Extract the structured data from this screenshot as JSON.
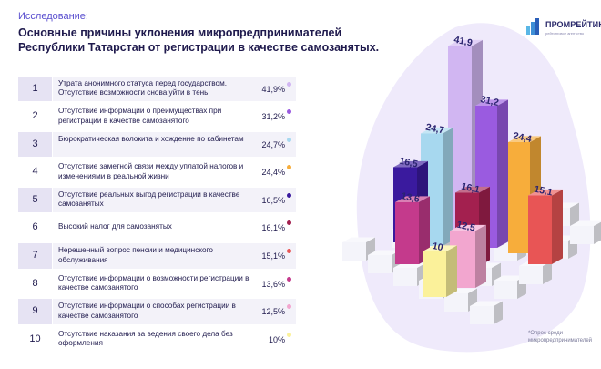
{
  "header": {
    "kicker": "Исследование:",
    "title": "Основные причины уклонения микропредпринимателей Республики Татарстан от регистрации в качестве самозанятых."
  },
  "logo": {
    "name": "ПРОМРЕЙТИНГ",
    "subtitle": "рейтинговое агентство"
  },
  "footnote": "*Опрос среди микропредпринимателей",
  "rows": [
    {
      "num": "1",
      "label": "Утрата анонимного статуса перед государством. Отсутствие возможности снова уйти в тень",
      "pct": "41,9%",
      "color": "#d1b6f2"
    },
    {
      "num": "2",
      "label": "Отсутствие информации о преимуществах при регистрации в качестве самозанятого",
      "pct": "31,2%",
      "color": "#9a5be0"
    },
    {
      "num": "3",
      "label": "Бюрократическая волокита и хождение по кабинетам",
      "pct": "24,7%",
      "color": "#a7d8ef"
    },
    {
      "num": "4",
      "label": "Отсутствие заметной связи между уплатой налогов и изменениями в реальной жизни",
      "pct": "24,4%",
      "color": "#f7ad3b"
    },
    {
      "num": "5",
      "label": "Отсутствие реальных выгод регистрации в качестве самозанятых",
      "pct": "16,5%",
      "color": "#3a1a9e"
    },
    {
      "num": "6",
      "label": "Высокий налог для самозанятых",
      "pct": "16,1%",
      "color": "#a3204f"
    },
    {
      "num": "7",
      "label": "Нерешенный вопрос пенсии и медицинского обслуживания",
      "pct": "15,1%",
      "color": "#e85555"
    },
    {
      "num": "8",
      "label": "Отсутствие информации о возможности регистрации в качестве самозанятого",
      "pct": "13,6%",
      "color": "#c43a8c"
    },
    {
      "num": "9",
      "label": "Отсутствие информации о способах регистрации в качестве самозанятого",
      "pct": "12,5%",
      "color": "#f2a6cf"
    },
    {
      "num": "10",
      "label": "Отсутствие наказания за ведения своего дела без оформления",
      "pct": "10%",
      "color": "#fbf19a"
    }
  ],
  "chart_data": {
    "type": "bar",
    "title": "Основные причины уклонения микропредпринимателей Республики Татарстан от регистрации в качестве самозанятых.",
    "categories": [
      "1",
      "2",
      "3",
      "4",
      "5",
      "6",
      "7",
      "8",
      "9",
      "10"
    ],
    "values": [
      41.9,
      31.2,
      24.7,
      24.4,
      16.5,
      16.1,
      15.1,
      13.6,
      12.5,
      10
    ],
    "data_labels": [
      "41,9",
      "31,2",
      "24,7",
      "24,4",
      "16,5",
      "16,1",
      "15,1",
      "13,6",
      "12,5",
      "10"
    ],
    "colors": [
      "#d1b6f2",
      "#9a5be0",
      "#a7d8ef",
      "#f7ad3b",
      "#3a1a9e",
      "#a3204f",
      "#e85555",
      "#c43a8c",
      "#f2a6cf",
      "#fbf19a"
    ],
    "unit": "%",
    "ylim": [
      0,
      45
    ]
  }
}
